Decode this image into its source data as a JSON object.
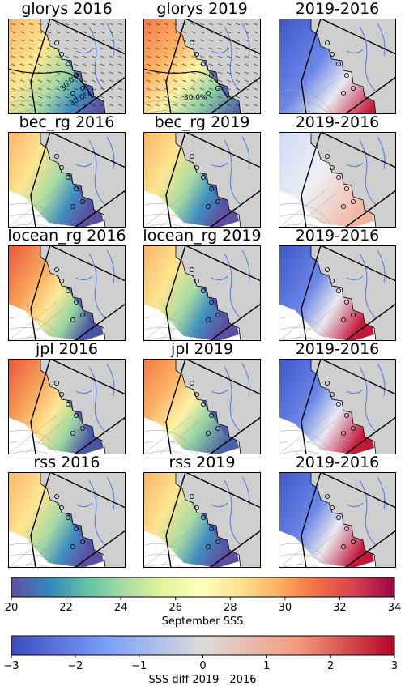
{
  "chart_data": {
    "type": "heatmap",
    "description_type": "map-grid",
    "panel_titles": [
      [
        "glorys 2016",
        "glorys 2019",
        "2019-2016"
      ],
      [
        "bec_rg 2016",
        "bec_rg 2019",
        "2019-2016"
      ],
      [
        "locean_rg 2016",
        "locean_rg 2019",
        "2019-2016"
      ],
      [
        "jpl 2016",
        "jpl 2019",
        "2019-2016"
      ],
      [
        "rss 2016",
        "rss 2019",
        "2019-2016"
      ]
    ],
    "contour_labels": [
      "30.0%",
      "30.0%",
      "30.0%"
    ],
    "colorbars": [
      {
        "label": "September SSS",
        "range": [
          20,
          34
        ],
        "ticks": [
          "20",
          "22",
          "24",
          "26",
          "28",
          "30",
          "32",
          "34"
        ],
        "colormap": "Spectral_r"
      },
      {
        "label": "SSS diff 2019 - 2016",
        "range": [
          -3,
          3
        ],
        "ticks": [
          "−3",
          "−2",
          "−1",
          "0",
          "1",
          "2",
          "3"
        ],
        "colormap": "coolwarm"
      }
    ]
  },
  "colors": {
    "land": "#cfcfcf",
    "river": "#4a6ee0",
    "coast": "#000000",
    "grid": "#9a9a9a"
  }
}
